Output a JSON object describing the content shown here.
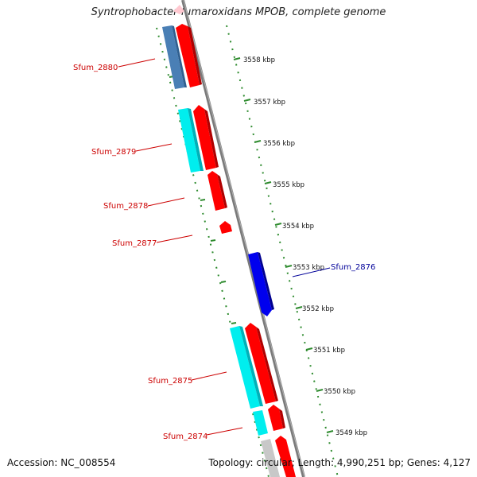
{
  "title": "Syntrophobacter fumaroxidans MPOB, complete genome",
  "accession": "Accession: NC_008554",
  "topology": "Topology: circular; Length: 4,990,251 bp; Genes: 4,127",
  "colors": {
    "forward_gene": "#ff0000",
    "reverse_gene_cyan": "#00e5ee",
    "reverse_gene_steel": "#4682b4",
    "forward_gene_blue": "#0000ee",
    "faded_gene": "#ffc0cb",
    "gray_gene": "#c8c8c8",
    "backbone": "#808080",
    "tick_marks": "#228b22",
    "label_forward": "#cc0000",
    "label_blue": "#000099"
  },
  "scale_ticks": [
    {
      "label": "3558 kbp"
    },
    {
      "label": "3557 kbp"
    },
    {
      "label": "3556 kbp"
    },
    {
      "label": "3555 kbp"
    },
    {
      "label": "3554 kbp"
    },
    {
      "label": "3553 kbp"
    },
    {
      "label": "3552 kbp"
    },
    {
      "label": "3551 kbp"
    },
    {
      "label": "3550 kbp"
    },
    {
      "label": "3549 kbp"
    }
  ],
  "gene_labels": [
    {
      "name": "Sfum_2880",
      "color": "label_forward"
    },
    {
      "name": "Sfum_2879",
      "color": "label_forward"
    },
    {
      "name": "Sfum_2878",
      "color": "label_forward"
    },
    {
      "name": "Sfum_2877",
      "color": "label_forward"
    },
    {
      "name": "Sfum_2876",
      "color": "label_blue"
    },
    {
      "name": "Sfum_2875",
      "color": "label_forward"
    },
    {
      "name": "Sfum_2874",
      "color": "label_forward"
    }
  ]
}
